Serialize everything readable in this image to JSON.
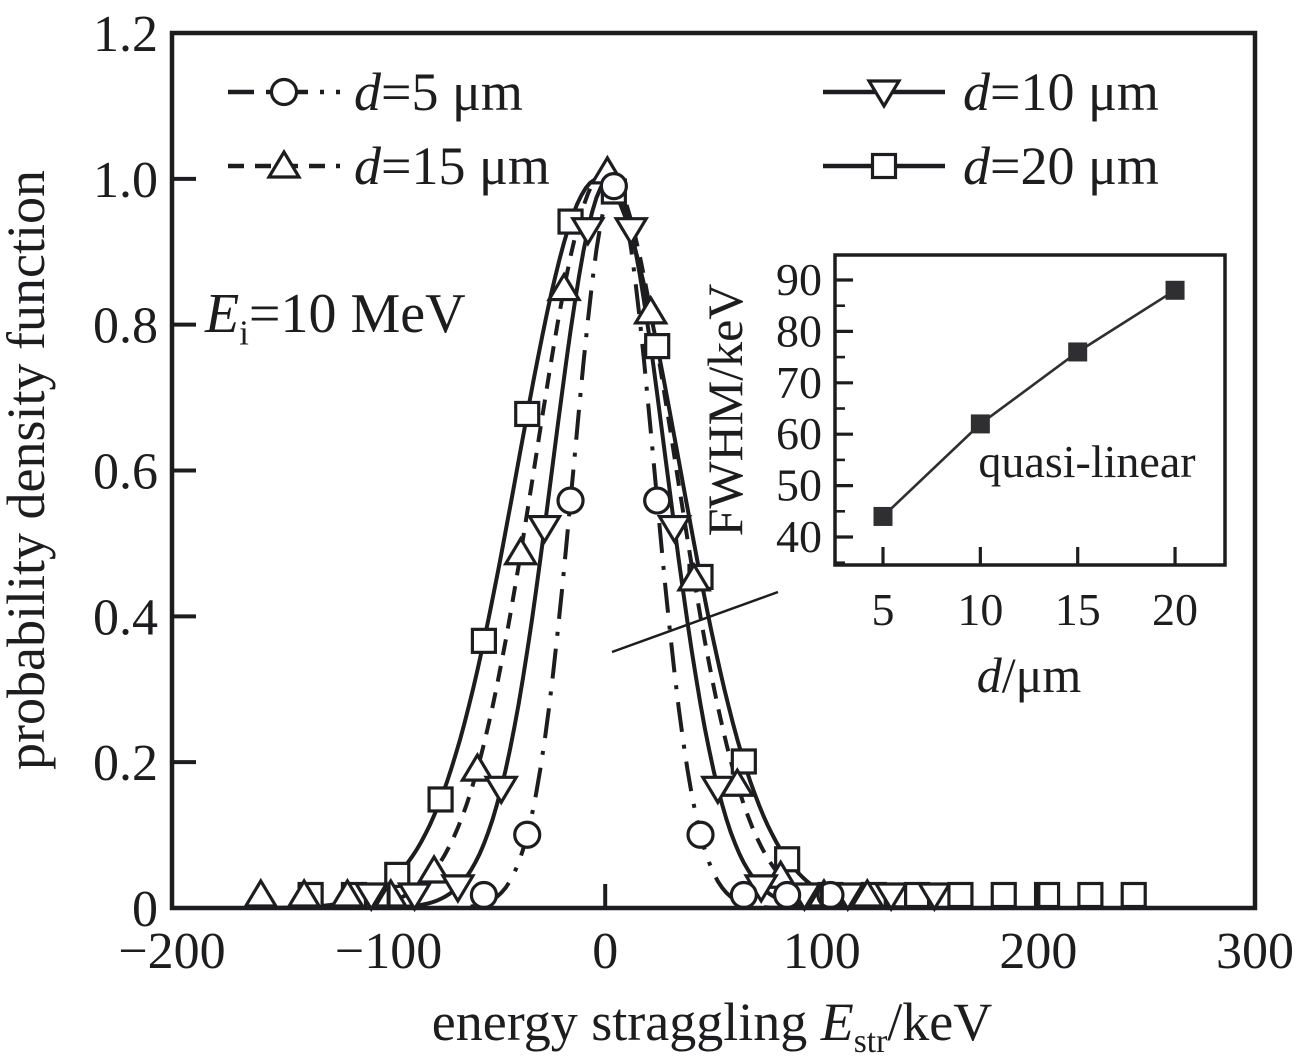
{
  "figure": {
    "background": "#ffffff",
    "ink": "#1d1d1f",
    "accent_red": "#e8191e",
    "inset_ink": "#2f2f31"
  },
  "chart_data": {
    "type": "line",
    "title": "",
    "xlabel_text": "energy straggling Estr/keV",
    "xlabel_parts": [
      {
        "t": "energy straggling "
      },
      {
        "t": "E",
        "style": "italic"
      },
      {
        "t": "str",
        "style": "sub"
      },
      {
        "t": "/keV"
      }
    ],
    "ylabel": "probability density function",
    "xlim": [
      -200,
      300
    ],
    "ylim": [
      0,
      1.2
    ],
    "x_ticks": [
      -200,
      -100,
      0,
      100,
      200,
      300
    ],
    "y_ticks": [
      0,
      0.2,
      0.4,
      0.6,
      0.8,
      1.0,
      1.2
    ],
    "grid": false,
    "annotation": {
      "text": "Ei=10 MeV",
      "color": "#e8191e",
      "parts": [
        {
          "t": "E",
          "style": "italic"
        },
        {
          "t": "i",
          "style": "sub"
        },
        {
          "t": "=10 MeV"
        }
      ]
    },
    "legend_position": "top-inside-two-columns",
    "series": [
      {
        "id": "d-5",
        "label": "d=5 μm",
        "label_parts": [
          {
            "t": "d",
            "style": "italic"
          },
          {
            "t": "=5 μm"
          }
        ],
        "marker": "circle",
        "line_style": "dashdot",
        "gauss": {
          "center": 4,
          "sigma": 18.7,
          "amplitude": 0.99
        },
        "fwhm_kev": 44,
        "draw_range": [
          -82,
          118
        ],
        "marker_range": [
          -56,
          104
        ],
        "marker_step": 20,
        "legend": {
          "col": 0,
          "row": 0
        }
      },
      {
        "id": "d-10",
        "label": "d=10 μm",
        "label_parts": [
          {
            "t": "d",
            "style": "italic"
          },
          {
            "t": "=10 μm"
          }
        ],
        "marker": "triangle-down",
        "line_style": "solid",
        "gauss": {
          "center": 2,
          "sigma": 26.3,
          "amplitude": 1.0
        },
        "fwhm_kev": 62,
        "draw_range": [
          -120,
          164
        ],
        "marker_range": [
          -108,
          152
        ],
        "marker_step": 20,
        "legend": {
          "col": 1,
          "row": 0
        }
      },
      {
        "id": "d-15",
        "label": "d=15 μm",
        "label_parts": [
          {
            "t": "d",
            "style": "italic"
          },
          {
            "t": "=15 μm"
          }
        ],
        "marker": "triangle-up",
        "line_style": "dashed",
        "gauss": {
          "center": 0,
          "sigma": 32.3,
          "amplitude": 1.01
        },
        "fwhm_kev": 76,
        "draw_range": [
          -168,
          135
        ],
        "marker_range": [
          -159,
          121
        ],
        "marker_step": 20,
        "legend": {
          "col": 0,
          "row": 1
        }
      },
      {
        "id": "d-20",
        "label": "d=20 μm",
        "label_parts": [
          {
            "t": "d",
            "style": "italic"
          },
          {
            "t": "=20 μm"
          }
        ],
        "marker": "square",
        "line_style": "solid",
        "gauss": {
          "center": -3,
          "sigma": 37.4,
          "amplitude": 1.0
        },
        "fwhm_kev": 88,
        "draw_range": [
          -165,
          256
        ],
        "marker_range": [
          -136,
          244
        ],
        "marker_step": 20,
        "legend": {
          "col": 1,
          "row": 1
        }
      }
    ],
    "inset": {
      "type": "line",
      "x": [
        5,
        10,
        15,
        20
      ],
      "y": [
        44,
        62,
        76,
        88
      ],
      "xlabel_text": "d/μm",
      "xlabel_parts": [
        {
          "t": "d",
          "style": "italic"
        },
        {
          "t": "/μm"
        }
      ],
      "ylabel": "FWHM/keV",
      "x_ticks": [
        5,
        10,
        15,
        20
      ],
      "y_ticks": [
        40,
        50,
        60,
        70,
        80,
        90
      ],
      "y_minor_ticks": [
        35,
        45,
        55,
        65,
        75,
        85
      ],
      "xlim": [
        2.5,
        22.6
      ],
      "ylim": [
        30,
        95.5
      ],
      "annotation": "quasi-linear",
      "marker": "filled-square"
    }
  }
}
